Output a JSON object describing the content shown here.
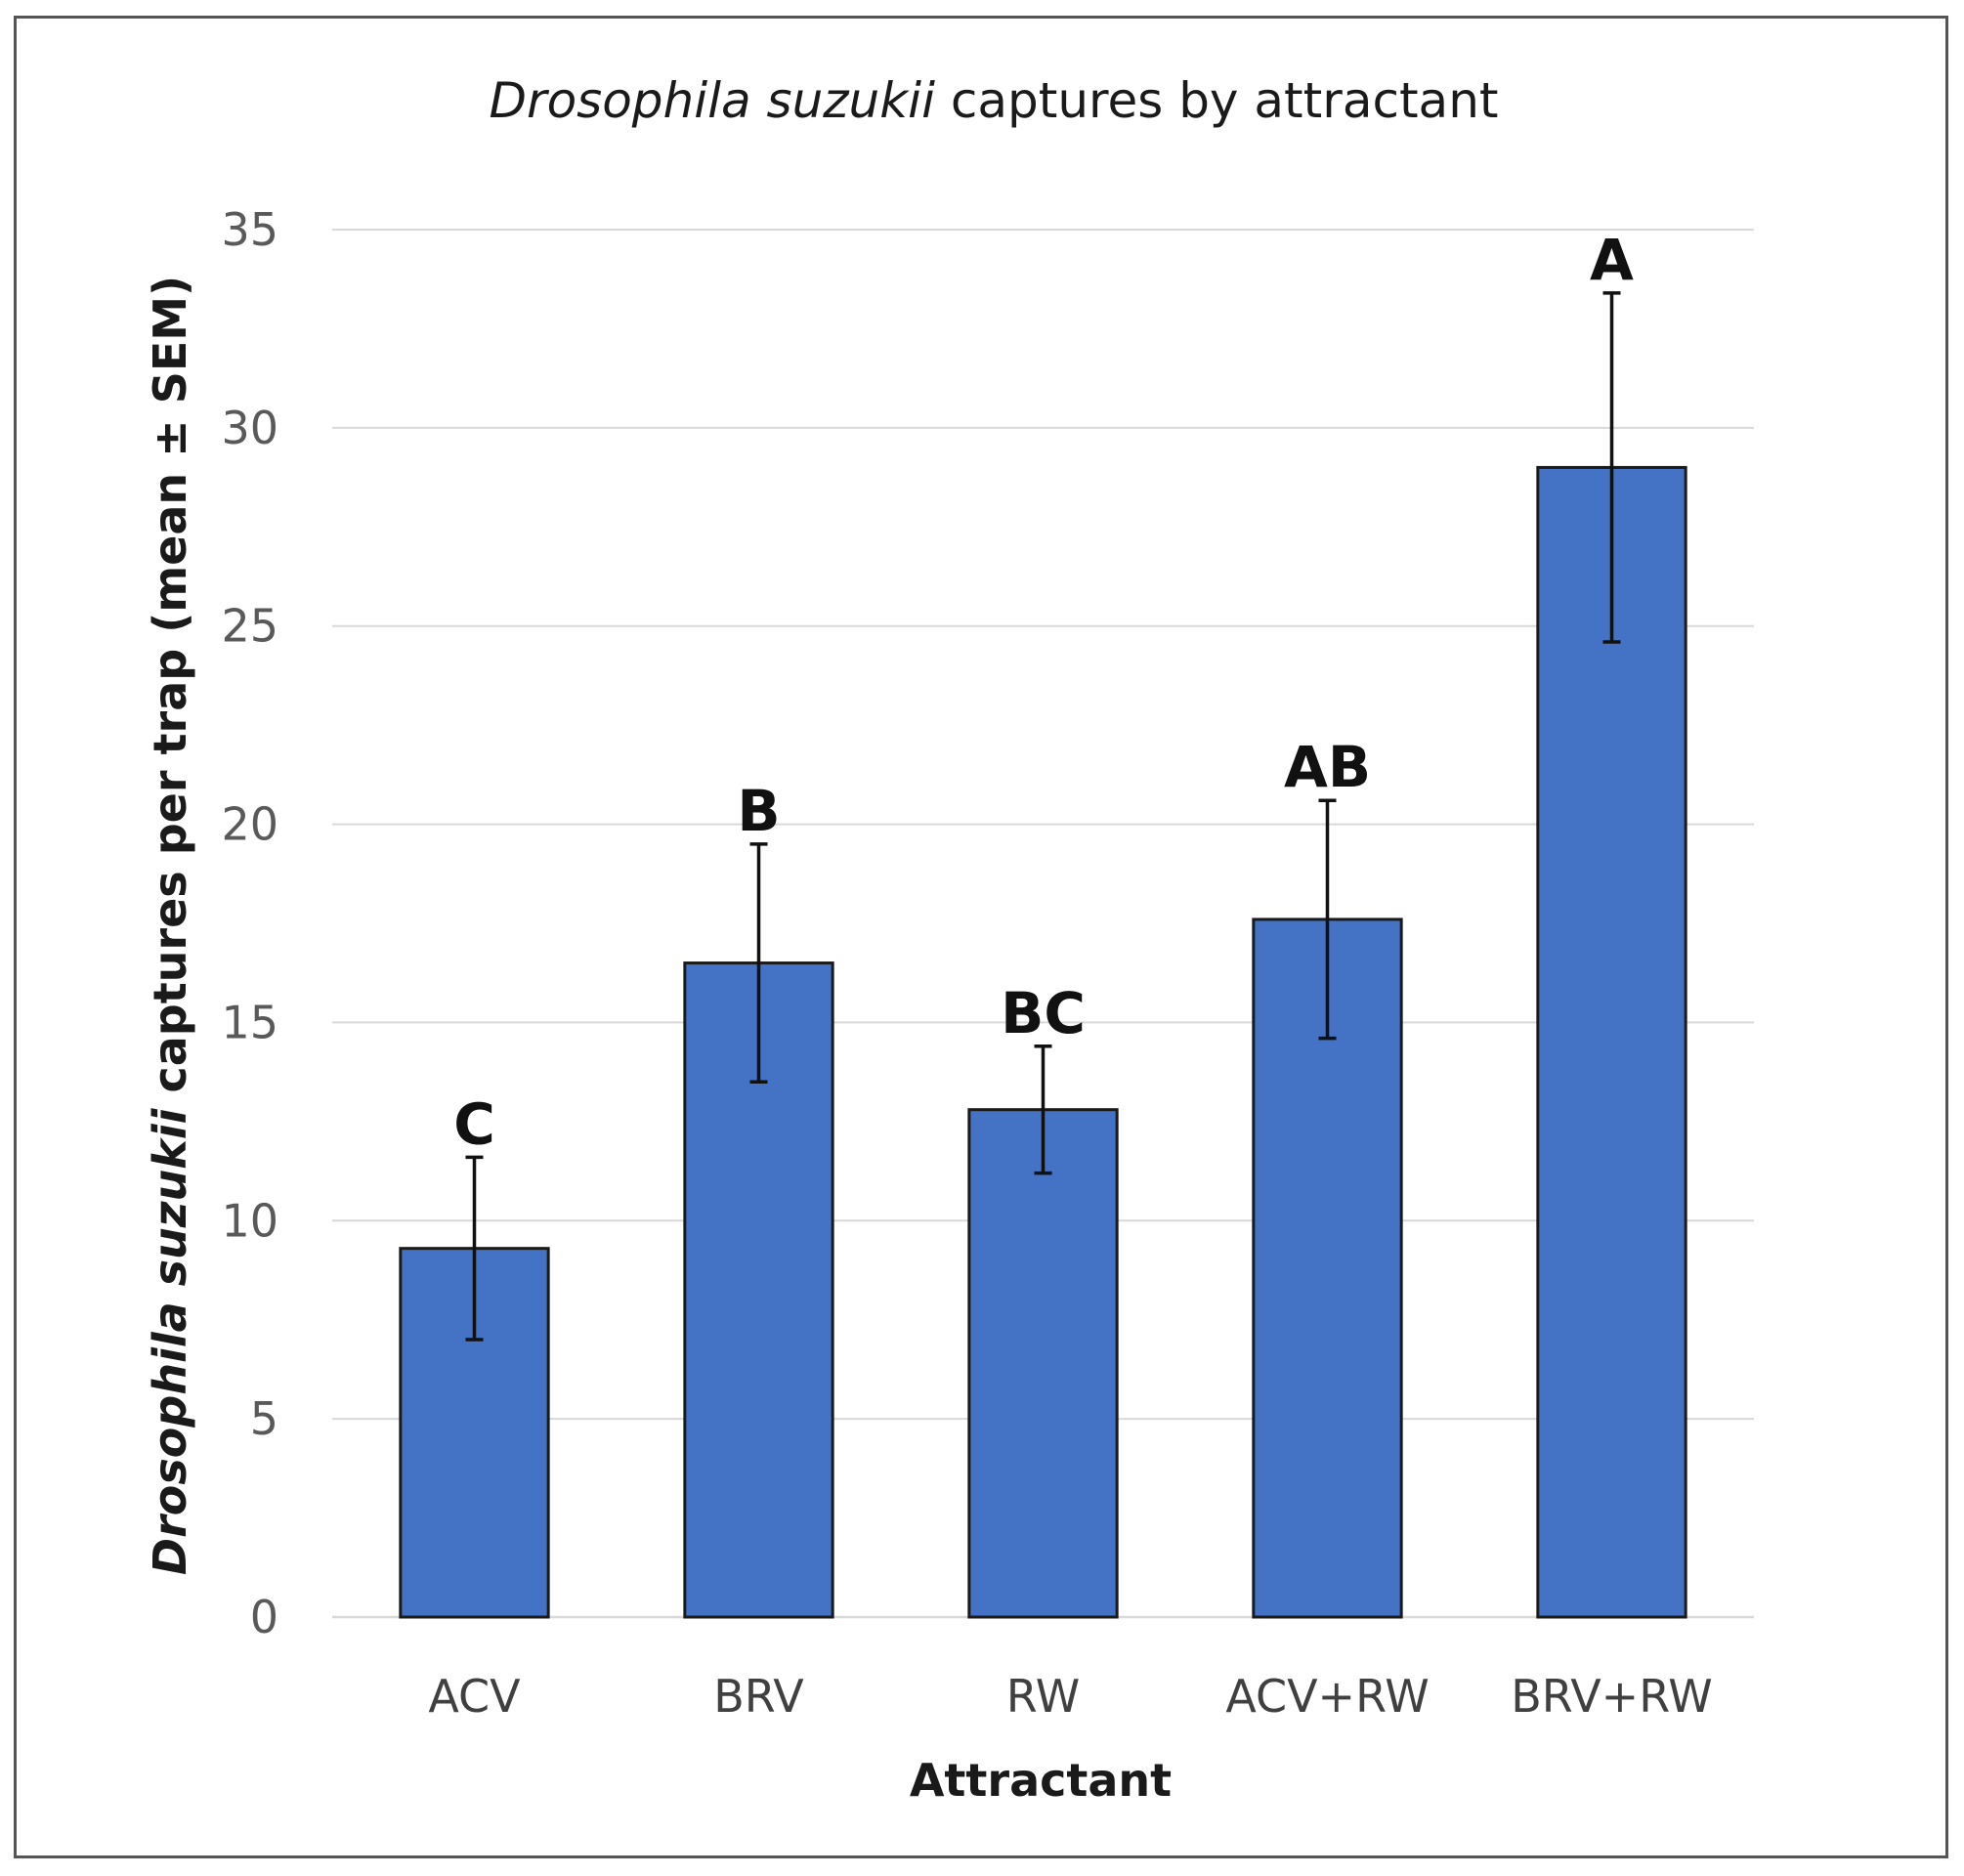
{
  "chart_data": {
    "type": "bar",
    "title": {
      "italic": "Drosophila suzukii",
      "rest": " captures by attractant"
    },
    "xlabel": "Attractant",
    "ylabel": {
      "italic": "Drosophila suzukii",
      "rest": " captures per trap (mean ± SEM)"
    },
    "ylim": [
      0,
      35
    ],
    "yticks": [
      "0",
      "5",
      "10",
      "15",
      "20",
      "25",
      "30",
      "35"
    ],
    "grid": true,
    "legend": "none",
    "categories": [
      "ACV",
      "BRV",
      "RW",
      "ACV+RW",
      "BRV+RW"
    ],
    "values": [
      9.3,
      16.5,
      12.8,
      17.6,
      29.0
    ],
    "errors": [
      2.3,
      3.0,
      1.6,
      3.0,
      4.4
    ],
    "significance_letters": [
      "C",
      "B",
      "BC",
      "AB",
      "A"
    ],
    "bar_color": "#4472C4",
    "bar_edge_color": "#1a1a1a",
    "grid_color": "#d9d9d9"
  }
}
